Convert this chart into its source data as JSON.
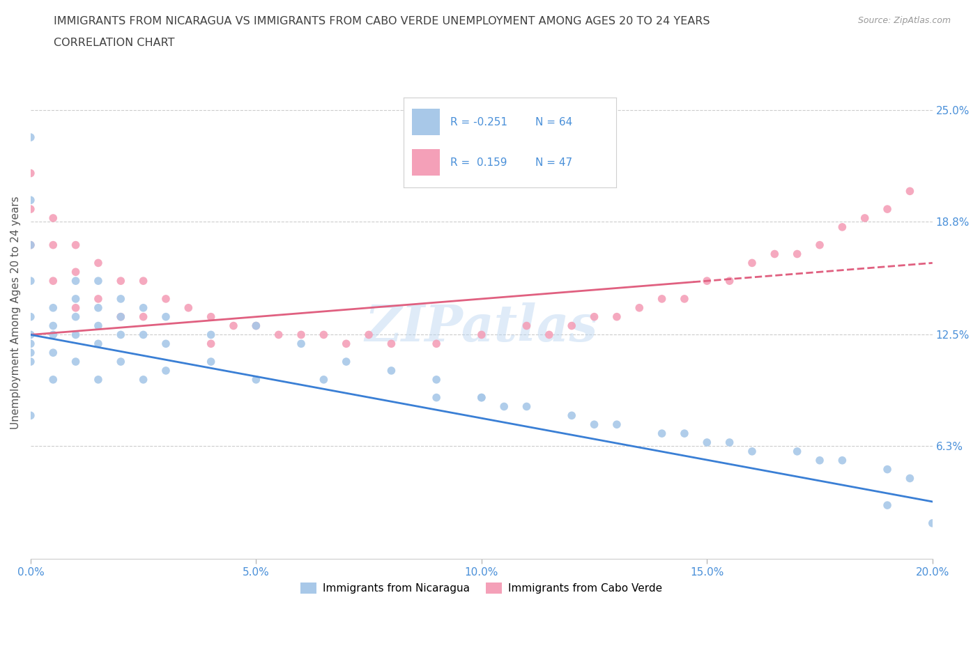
{
  "title_line1": "IMMIGRANTS FROM NICARAGUA VS IMMIGRANTS FROM CABO VERDE UNEMPLOYMENT AMONG AGES 20 TO 24 YEARS",
  "title_line2": "CORRELATION CHART",
  "source_text": "Source: ZipAtlas.com",
  "ylabel": "Unemployment Among Ages 20 to 24 years",
  "xmin": 0.0,
  "xmax": 0.2,
  "ymin": 0.0,
  "ymax": 0.275,
  "right_yticks": [
    0.063,
    0.125,
    0.188,
    0.25
  ],
  "right_yticklabels": [
    "6.3%",
    "12.5%",
    "18.8%",
    "25.0%"
  ],
  "xticks": [
    0.0,
    0.05,
    0.1,
    0.15,
    0.2
  ],
  "xticklabels": [
    "0.0%",
    "5.0%",
    "10.0%",
    "15.0%",
    "20.0%"
  ],
  "nicaragua_color": "#a8c8e8",
  "cabo_verde_color": "#f4a0b8",
  "nicaragua_line_color": "#3a7fd5",
  "cabo_verde_line_color": "#e06080",
  "nicaragua_R": -0.251,
  "nicaragua_N": 64,
  "cabo_verde_R": 0.159,
  "cabo_verde_N": 47,
  "nicaragua_scatter_x": [
    0.0,
    0.0,
    0.0,
    0.0,
    0.0,
    0.0,
    0.0,
    0.0,
    0.0,
    0.0,
    0.005,
    0.005,
    0.005,
    0.005,
    0.005,
    0.01,
    0.01,
    0.01,
    0.01,
    0.01,
    0.015,
    0.015,
    0.015,
    0.015,
    0.015,
    0.02,
    0.02,
    0.02,
    0.02,
    0.025,
    0.025,
    0.025,
    0.03,
    0.03,
    0.03,
    0.04,
    0.04,
    0.05,
    0.05,
    0.06,
    0.065,
    0.07,
    0.08,
    0.09,
    0.09,
    0.1,
    0.105,
    0.11,
    0.12,
    0.125,
    0.13,
    0.14,
    0.15,
    0.155,
    0.16,
    0.17,
    0.175,
    0.18,
    0.19,
    0.195,
    0.1,
    0.145,
    0.19,
    0.2
  ],
  "nicaragua_scatter_y": [
    0.235,
    0.2,
    0.175,
    0.155,
    0.135,
    0.125,
    0.12,
    0.115,
    0.11,
    0.08,
    0.14,
    0.13,
    0.125,
    0.115,
    0.1,
    0.155,
    0.145,
    0.135,
    0.125,
    0.11,
    0.155,
    0.14,
    0.13,
    0.12,
    0.1,
    0.145,
    0.135,
    0.125,
    0.11,
    0.14,
    0.125,
    0.1,
    0.135,
    0.12,
    0.105,
    0.125,
    0.11,
    0.13,
    0.1,
    0.12,
    0.1,
    0.11,
    0.105,
    0.1,
    0.09,
    0.09,
    0.085,
    0.085,
    0.08,
    0.075,
    0.075,
    0.07,
    0.065,
    0.065,
    0.06,
    0.06,
    0.055,
    0.055,
    0.05,
    0.045,
    0.09,
    0.07,
    0.03,
    0.02
  ],
  "cabo_verde_scatter_x": [
    0.0,
    0.0,
    0.0,
    0.005,
    0.005,
    0.005,
    0.01,
    0.01,
    0.01,
    0.015,
    0.015,
    0.02,
    0.02,
    0.025,
    0.025,
    0.03,
    0.035,
    0.04,
    0.04,
    0.045,
    0.05,
    0.055,
    0.06,
    0.065,
    0.07,
    0.075,
    0.08,
    0.09,
    0.1,
    0.11,
    0.115,
    0.12,
    0.125,
    0.13,
    0.135,
    0.14,
    0.145,
    0.15,
    0.155,
    0.16,
    0.165,
    0.17,
    0.175,
    0.18,
    0.185,
    0.19,
    0.195
  ],
  "cabo_verde_scatter_y": [
    0.215,
    0.195,
    0.175,
    0.19,
    0.175,
    0.155,
    0.175,
    0.16,
    0.14,
    0.165,
    0.145,
    0.155,
    0.135,
    0.155,
    0.135,
    0.145,
    0.14,
    0.135,
    0.12,
    0.13,
    0.13,
    0.125,
    0.125,
    0.125,
    0.12,
    0.125,
    0.12,
    0.12,
    0.125,
    0.13,
    0.125,
    0.13,
    0.135,
    0.135,
    0.14,
    0.145,
    0.145,
    0.155,
    0.155,
    0.165,
    0.17,
    0.17,
    0.175,
    0.185,
    0.19,
    0.195,
    0.205
  ],
  "watermark_text": "ZIPatlas",
  "background_color": "#ffffff",
  "grid_color": "#cccccc",
  "title_color": "#404040",
  "axis_label_color": "#555555",
  "tick_label_color": "#4a90d9",
  "legend_box_color": "#e8e8e8"
}
